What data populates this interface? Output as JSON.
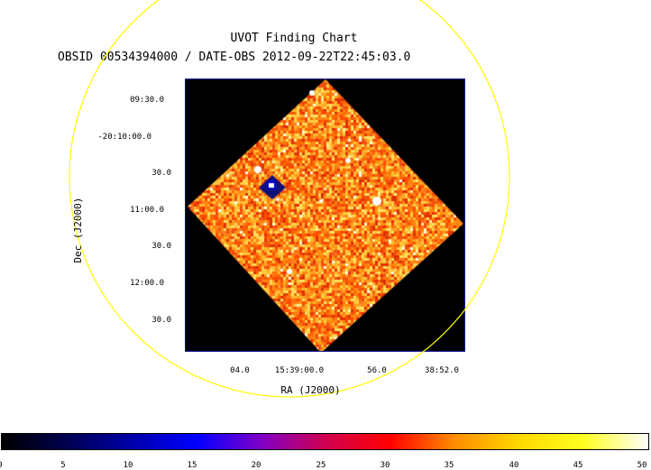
{
  "finding_chart": {
    "title": "UVOT Finding Chart",
    "subtitle": "OBSID 00534394000 / DATE-OBS 2012-09-22T22:45:03.0",
    "x_axis_label": "RA (J2000)",
    "y_axis_label": "Dec (J2000)",
    "ra_ticks": [
      "04.0",
      "15:39:00.0",
      "56.0",
      "38:52.0"
    ],
    "dec_ticks": [
      "09:30.0",
      "-20:10:00.0",
      "30.0",
      "11:00.0",
      "30.0",
      "12:00.0",
      "30.0"
    ],
    "circle_color": "#ffff00",
    "frame_color": "#1a1aa0"
  },
  "colorbar": {
    "range": [
      0,
      50
    ],
    "ticks": [
      "0",
      "5",
      "10",
      "15",
      "20",
      "25",
      "30",
      "35",
      "40",
      "45",
      "50"
    ],
    "colors": [
      "#000000",
      "#000050",
      "#0000aa",
      "#0000ff",
      "#7f00c8",
      "#d00050",
      "#ff0000",
      "#ff8c00",
      "#ffd800",
      "#ffff20",
      "#ffffff"
    ]
  }
}
